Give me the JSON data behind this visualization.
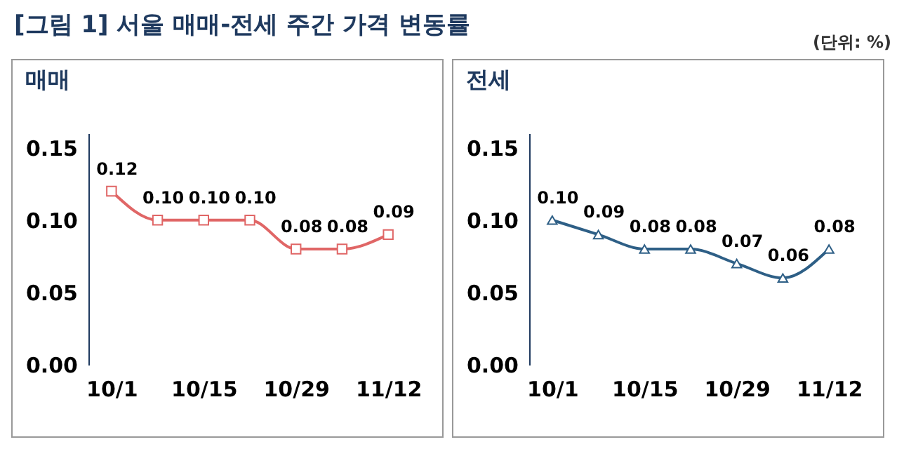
{
  "chart_data": [
    {
      "type": "other",
      "title": "[그림 1] 서울 매매-전세 주간 가격 변동률",
      "annotations": [
        "(단위: %)"
      ]
    },
    {
      "type": "line",
      "title": "매매",
      "categories": [
        "10/1",
        null,
        "10/15",
        null,
        "10/29",
        null,
        "11/12"
      ],
      "series": [
        {
          "color": "#e06666",
          "values": [
            0.12,
            0.1,
            0.1,
            0.1,
            0.08,
            0.08,
            0.09
          ],
          "value_labels": [
            "0.12",
            "0.10",
            "0.10",
            "0.10",
            "0.08",
            "0.08",
            "0.09"
          ]
        }
      ],
      "ylim": [
        0,
        0.16
      ],
      "yticks": [
        {
          "value": 0,
          "label": "0.00"
        },
        {
          "value": 0.05,
          "label": "0.05"
        },
        {
          "value": 0.1,
          "label": "0.10"
        },
        {
          "value": 0.15,
          "label": "0.15"
        }
      ],
      "marker": "square",
      "grid": false,
      "legend": false
    },
    {
      "type": "line",
      "title": "전세",
      "categories": [
        "10/1",
        null,
        "10/15",
        null,
        "10/29",
        null,
        "11/12"
      ],
      "series": [
        {
          "color": "#2e5f86",
          "values": [
            0.1,
            0.09,
            0.08,
            0.08,
            0.07,
            0.06,
            0.08
          ],
          "value_labels": [
            "0.10",
            "0.09",
            "0.08",
            "0.08",
            "0.07",
            "0.06",
            "0.08"
          ]
        }
      ],
      "ylim": [
        0,
        0.16
      ],
      "yticks": [
        {
          "value": 0,
          "label": "0.00"
        },
        {
          "value": 0.05,
          "label": "0.05"
        },
        {
          "value": 0.1,
          "label": "0.10"
        },
        {
          "value": 0.15,
          "label": "0.15"
        }
      ],
      "marker": "triangle",
      "grid": false,
      "legend": false
    }
  ]
}
